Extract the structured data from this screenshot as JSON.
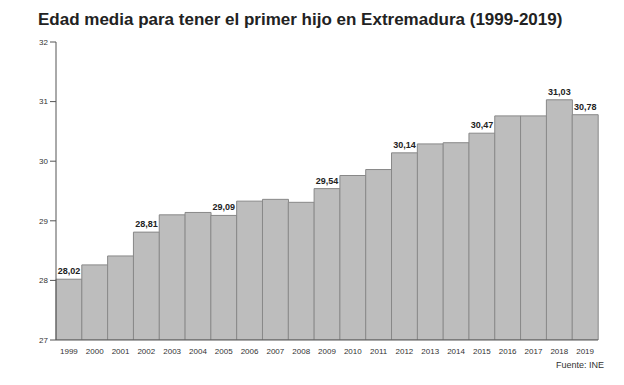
{
  "chart_data": {
    "type": "bar",
    "title": "Edad media para tener el primer hijo en Extremadura (1999-2019)",
    "source": "Fuente: INE",
    "categories": [
      "1999",
      "2000",
      "2001",
      "2002",
      "2003",
      "2004",
      "2005",
      "2006",
      "2007",
      "2008",
      "2009",
      "2010",
      "2011",
      "2012",
      "2013",
      "2014",
      "2015",
      "2016",
      "2017",
      "2018",
      "2019"
    ],
    "values": [
      28.02,
      28.26,
      28.41,
      28.81,
      29.1,
      29.14,
      29.09,
      29.33,
      29.36,
      29.31,
      29.54,
      29.76,
      29.86,
      30.14,
      30.29,
      30.31,
      30.47,
      30.76,
      30.76,
      31.03,
      30.78
    ],
    "value_labels": [
      "28,02",
      null,
      null,
      "28,81",
      null,
      null,
      "29,09",
      null,
      null,
      null,
      "29,54",
      null,
      null,
      "30,14",
      null,
      null,
      "30,47",
      null,
      null,
      "31,03",
      "30,78"
    ],
    "color": "#bdbdbd",
    "data_labels": true,
    "grid": false,
    "ylim": [
      27,
      32
    ],
    "yticks": [
      27,
      28,
      29,
      30,
      31,
      32
    ]
  }
}
